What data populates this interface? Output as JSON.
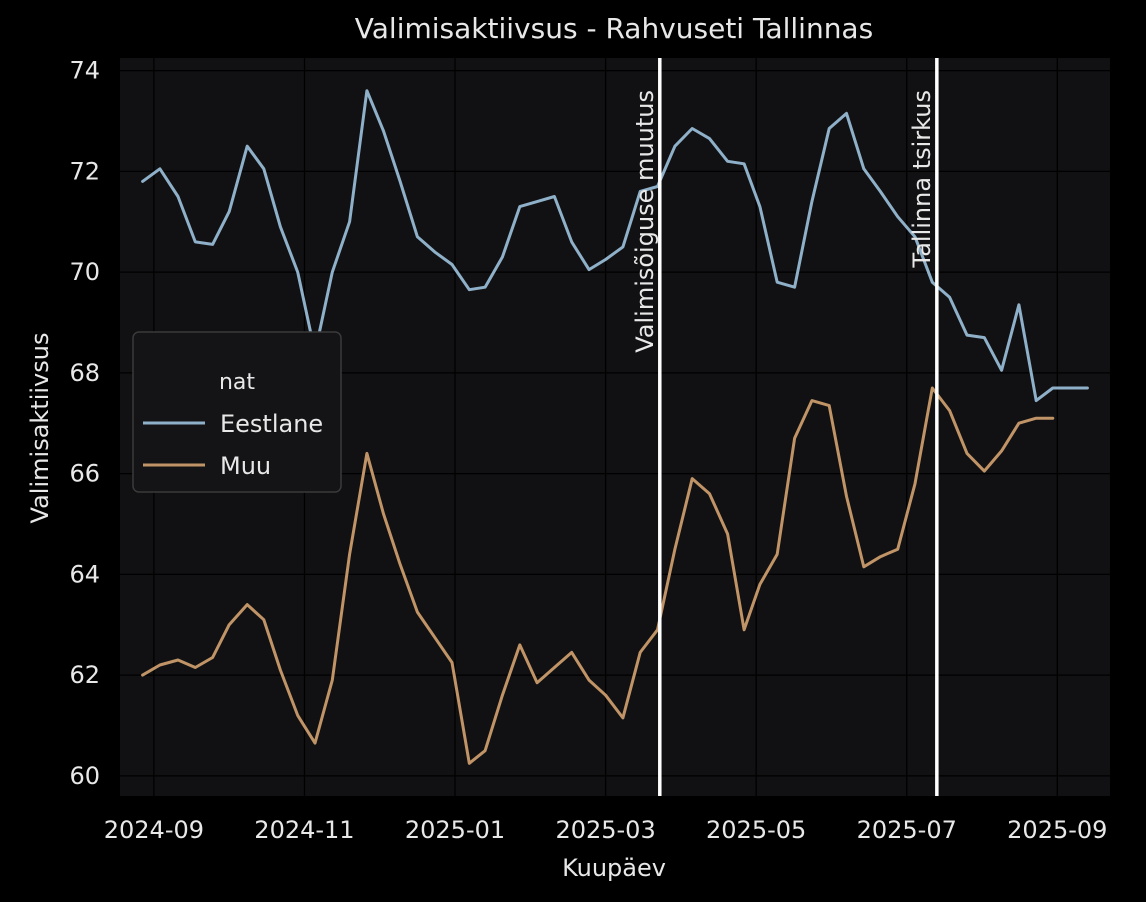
{
  "chart_data": {
    "type": "line",
    "title": "Valimisaktiivsus - Rahvuseti Tallinnas",
    "xlabel": "Kuupäev",
    "ylabel": "Valimisaktiivsus",
    "xlim": [
      -0.45,
      12.7
    ],
    "ylim": [
      59.6,
      74.25
    ],
    "x_ticks": [
      {
        "value": 0,
        "label": "2024-09"
      },
      {
        "value": 2,
        "label": "2024-11"
      },
      {
        "value": 4,
        "label": "2025-01"
      },
      {
        "value": 6,
        "label": "2025-03"
      },
      {
        "value": 8,
        "label": "2025-05"
      },
      {
        "value": 10,
        "label": "2025-07"
      },
      {
        "value": 12,
        "label": "2025-09"
      }
    ],
    "y_ticks": [
      60,
      62,
      64,
      66,
      68,
      70,
      72,
      74
    ],
    "grid": true,
    "legend": {
      "title": "nat",
      "position": "center-left"
    },
    "series": [
      {
        "name": "Eestlane",
        "color": "#8fb0c9",
        "x": [
          -0.15,
          0.08,
          0.32,
          0.55,
          0.78,
          1.0,
          1.24,
          1.46,
          1.68,
          1.91,
          2.14,
          2.37,
          2.6,
          2.83,
          3.05,
          3.27,
          3.5,
          3.73,
          3.96,
          4.19,
          4.4,
          4.63,
          4.86,
          5.09,
          5.32,
          5.55,
          5.78,
          6.0,
          6.23,
          6.46,
          6.69,
          6.92,
          7.15,
          7.38,
          7.62,
          7.84,
          8.05,
          8.28,
          8.51,
          8.74,
          8.97,
          9.2,
          9.43,
          9.65,
          9.88,
          10.11,
          10.34,
          10.57,
          10.8,
          11.03,
          11.26,
          11.49,
          11.72,
          11.94,
          12.17,
          12.4
        ],
        "values": [
          71.8,
          72.05,
          71.5,
          70.6,
          70.55,
          71.2,
          72.5,
          72.05,
          70.9,
          70.0,
          68.4,
          70.0,
          71.0,
          73.6,
          72.8,
          71.8,
          70.7,
          70.4,
          70.15,
          69.65,
          69.7,
          70.3,
          71.3,
          71.4,
          71.5,
          70.6,
          70.05,
          70.25,
          70.5,
          71.6,
          71.7,
          72.5,
          72.85,
          72.65,
          72.2,
          72.15,
          71.3,
          69.8,
          69.7,
          71.4,
          72.85,
          73.15,
          72.05,
          71.6,
          71.1,
          70.7,
          69.8,
          69.5,
          68.75,
          68.7,
          68.05,
          69.35,
          67.45,
          67.7,
          67.7,
          67.7
        ]
      },
      {
        "name": "Muu",
        "color": "#c09466",
        "x": [
          -0.15,
          0.08,
          0.32,
          0.55,
          0.78,
          1.0,
          1.24,
          1.46,
          1.68,
          1.91,
          2.14,
          2.37,
          2.6,
          2.83,
          3.05,
          3.27,
          3.5,
          3.73,
          3.96,
          4.19,
          4.4,
          4.63,
          4.86,
          5.09,
          5.32,
          5.55,
          5.78,
          6.0,
          6.23,
          6.46,
          6.69,
          6.92,
          7.15,
          7.38,
          7.62,
          7.84,
          8.05,
          8.28,
          8.51,
          8.74,
          8.97,
          9.2,
          9.43,
          9.65,
          9.88,
          10.11,
          10.34,
          10.57,
          10.8,
          11.03,
          11.26,
          11.49,
          11.72,
          11.94
        ],
        "values": [
          62.0,
          62.2,
          62.3,
          62.15,
          62.35,
          63.0,
          63.4,
          63.1,
          62.1,
          61.2,
          60.65,
          61.9,
          64.4,
          66.4,
          65.2,
          64.2,
          63.25,
          62.75,
          62.25,
          60.25,
          60.5,
          61.6,
          62.6,
          61.85,
          62.15,
          62.45,
          61.9,
          61.6,
          61.15,
          62.45,
          62.9,
          64.5,
          65.9,
          65.6,
          64.8,
          62.9,
          63.8,
          64.4,
          66.7,
          67.45,
          67.35,
          65.55,
          64.15,
          64.35,
          64.5,
          65.8,
          67.7,
          67.25,
          66.4,
          66.05,
          66.45,
          67.0,
          67.1,
          67.1
        ]
      }
    ],
    "vlines": [
      {
        "x": 6.72,
        "label": "Valimisõiguse muutus"
      },
      {
        "x": 10.4,
        "label": "Tallinna tsirkus"
      }
    ]
  }
}
